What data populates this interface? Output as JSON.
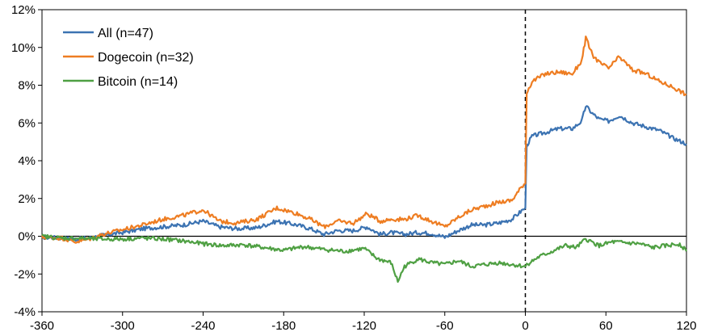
{
  "chart_data": {
    "type": "line",
    "title": "",
    "xlabel": "",
    "ylabel": "",
    "xlim": [
      -360,
      120
    ],
    "ylim": [
      -4,
      12
    ],
    "x_ticks": [
      -360,
      -300,
      -240,
      -180,
      -120,
      -60,
      0,
      60,
      120
    ],
    "x_tick_labels": [
      "-360",
      "-300",
      "-240",
      "-180",
      "-120",
      "-60",
      "0",
      "60",
      "120"
    ],
    "y_ticks": [
      -4,
      -2,
      0,
      2,
      4,
      6,
      8,
      10,
      12
    ],
    "y_tick_labels": [
      "-4%",
      "-2%",
      "0%",
      "2%",
      "4%",
      "6%",
      "8%",
      "10%",
      "12%"
    ],
    "grid": false,
    "legend_position": "top-left",
    "vertical_reference_line": {
      "x": 0,
      "style": "dashed",
      "color": "#000000"
    },
    "series": [
      {
        "name": "All (n=47)",
        "color": "#3c73b2",
        "x": [
          -360,
          -345,
          -335,
          -325,
          -315,
          -300,
          -285,
          -270,
          -255,
          -240,
          -228,
          -215,
          -200,
          -185,
          -170,
          -160,
          -150,
          -140,
          -128,
          -118,
          -108,
          -100,
          -90,
          -80,
          -70,
          -60,
          -50,
          -40,
          -30,
          -20,
          -10,
          -2,
          0,
          1,
          5,
          15,
          25,
          35,
          42,
          45,
          50,
          55,
          62,
          70,
          80,
          90,
          100,
          110,
          120
        ],
        "y": [
          -0.05,
          -0.1,
          -0.15,
          -0.1,
          0.05,
          0.2,
          0.4,
          0.5,
          0.6,
          0.8,
          0.5,
          0.4,
          0.45,
          0.8,
          0.6,
          0.4,
          0.1,
          0.3,
          0.3,
          0.5,
          0.1,
          0.2,
          0.1,
          0.2,
          0.15,
          -0.05,
          0.3,
          0.6,
          0.6,
          0.7,
          0.9,
          1.4,
          1.5,
          4.8,
          5.3,
          5.5,
          5.7,
          5.7,
          6.1,
          6.9,
          6.5,
          6.2,
          6.1,
          6.4,
          6.0,
          5.8,
          5.6,
          5.2,
          4.9
        ]
      },
      {
        "name": "Dogecoin (n=32)",
        "color": "#ee7d22",
        "x": [
          -360,
          -345,
          -335,
          -325,
          -315,
          -300,
          -285,
          -270,
          -255,
          -240,
          -228,
          -215,
          -200,
          -185,
          -170,
          -160,
          -150,
          -140,
          -128,
          -118,
          -108,
          -100,
          -90,
          -80,
          -70,
          -60,
          -50,
          -40,
          -30,
          -20,
          -10,
          -2,
          0,
          1,
          5,
          15,
          25,
          35,
          42,
          45,
          50,
          55,
          62,
          70,
          80,
          90,
          100,
          110,
          120
        ],
        "y": [
          -0.05,
          -0.1,
          -0.3,
          -0.15,
          0.1,
          0.35,
          0.6,
          0.9,
          1.1,
          1.4,
          0.8,
          0.7,
          0.9,
          1.5,
          1.2,
          0.9,
          0.5,
          0.8,
          0.7,
          1.2,
          0.8,
          0.9,
          0.9,
          1.1,
          0.8,
          0.5,
          1.0,
          1.4,
          1.6,
          1.8,
          1.9,
          2.7,
          2.8,
          7.6,
          8.2,
          8.6,
          8.7,
          8.6,
          9.3,
          10.5,
          9.6,
          9.2,
          8.9,
          9.5,
          8.8,
          8.6,
          8.2,
          7.9,
          7.5
        ]
      },
      {
        "name": "Bitcoin (n=14)",
        "color": "#4fa043",
        "x": [
          -360,
          -345,
          -335,
          -320,
          -300,
          -285,
          -270,
          -255,
          -240,
          -225,
          -210,
          -195,
          -180,
          -165,
          -150,
          -135,
          -120,
          -110,
          -100,
          -95,
          -90,
          -80,
          -70,
          -60,
          -50,
          -40,
          -30,
          -20,
          -10,
          0,
          1,
          10,
          20,
          30,
          38,
          45,
          55,
          65,
          75,
          85,
          95,
          105,
          115,
          120
        ],
        "y": [
          0.0,
          -0.1,
          -0.1,
          -0.15,
          -0.15,
          -0.1,
          -0.15,
          -0.25,
          -0.4,
          -0.5,
          -0.45,
          -0.6,
          -0.75,
          -0.55,
          -0.7,
          -0.8,
          -0.65,
          -1.2,
          -1.4,
          -2.4,
          -1.6,
          -1.2,
          -1.4,
          -1.5,
          -1.3,
          -1.6,
          -1.5,
          -1.4,
          -1.5,
          -1.6,
          -1.5,
          -1.1,
          -0.8,
          -0.5,
          -0.6,
          -0.15,
          -0.5,
          -0.3,
          -0.35,
          -0.4,
          -0.6,
          -0.5,
          -0.4,
          -0.8
        ]
      }
    ]
  }
}
